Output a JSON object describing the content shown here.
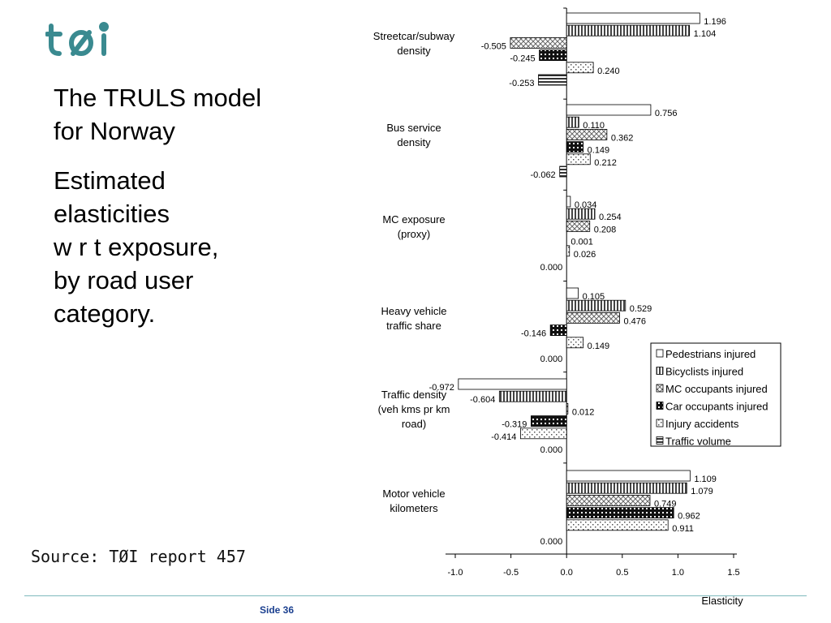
{
  "logo": {
    "text": "tøi",
    "color": "#3a8a90"
  },
  "bullets": [
    {
      "lines": [
        "The TRULS model",
        "for Norway"
      ]
    },
    {
      "lines": [
        "Estimated",
        "elasticities",
        "w r t exposure,",
        "by road user",
        "category."
      ]
    }
  ],
  "source": "Source: TØI report 457",
  "footer": {
    "page": "Side 36",
    "accent": "#7fb9bd"
  },
  "chart_data": {
    "type": "bar",
    "orientation": "horizontal",
    "categories": [
      {
        "lines": [
          "Streetcar/subway",
          "density"
        ]
      },
      {
        "lines": [
          "Bus service",
          "density"
        ]
      },
      {
        "lines": [
          "MC exposure",
          "(proxy)"
        ]
      },
      {
        "lines": [
          "Heavy vehicle",
          "traffic share"
        ]
      },
      {
        "lines": [
          "Traffic density",
          "(veh kms pr km",
          "road)"
        ]
      },
      {
        "lines": [
          "Motor vehicle",
          "kilometers"
        ]
      }
    ],
    "series": [
      {
        "name": "Pedestrians injured",
        "pattern": "blank",
        "values": [
          1.196,
          0.756,
          0.034,
          0.105,
          -0.972,
          1.109
        ],
        "labels": [
          "1.196",
          "0.756",
          "0.034",
          "0.105",
          "-0.972",
          "1.109"
        ]
      },
      {
        "name": "Bicyclists injured",
        "pattern": "vlines",
        "values": [
          1.104,
          0.11,
          0.254,
          0.529,
          -0.604,
          1.079
        ],
        "labels": [
          "1.104",
          "0.110",
          "0.254",
          "0.529",
          "-0.604",
          "1.079"
        ]
      },
      {
        "name": "MC occupants injured",
        "pattern": "checker",
        "values": [
          -0.505,
          0.362,
          0.208,
          0.476,
          0.012,
          0.749
        ],
        "labels": [
          "-0.505",
          "0.362",
          "0.208",
          "0.476",
          "0.012",
          "0.749"
        ]
      },
      {
        "name": "Car occupants injured",
        "pattern": "brick",
        "values": [
          -0.245,
          0.149,
          0.001,
          -0.146,
          -0.319,
          0.962
        ],
        "labels": [
          "-0.245",
          "0.149",
          "0.001",
          "-0.146",
          "-0.319",
          "0.962"
        ]
      },
      {
        "name": "Injury accidents",
        "pattern": "dots",
        "values": [
          0.24,
          0.212,
          0.026,
          0.149,
          -0.414,
          0.911
        ],
        "labels": [
          "0.240",
          "0.212",
          "0.026",
          "0.149",
          "-0.414",
          "0.911"
        ]
      },
      {
        "name": "Traffic volume",
        "pattern": "hlines",
        "values": [
          -0.253,
          -0.062,
          0.0,
          0.0,
          0.0,
          0.0
        ],
        "labels": [
          "-0.253",
          "-0.062",
          "0.000",
          "0.000",
          "0.000",
          "0.000"
        ]
      }
    ],
    "xlim": [
      -1.0,
      1.5
    ],
    "xticks": [
      "-1.0",
      "-0.5",
      "0.0",
      "0.5",
      "1.0",
      "1.5"
    ],
    "xlabel": "Elasticity",
    "legend_position": "right"
  }
}
